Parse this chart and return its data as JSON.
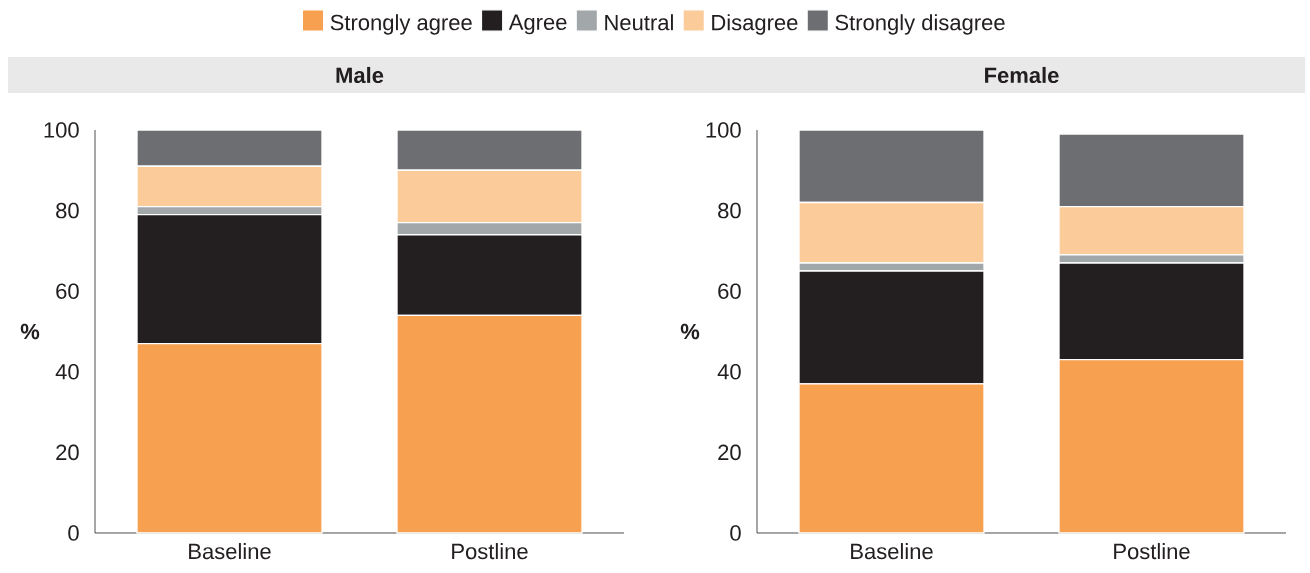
{
  "chart_data": [
    {
      "type": "bar",
      "title": "Male",
      "ylabel": "%",
      "categories": [
        "Baseline",
        "Postline"
      ],
      "stacked": true,
      "ylim": [
        0,
        100
      ],
      "yticks": [
        0,
        20,
        40,
        60,
        80,
        100
      ],
      "legend": "top",
      "series": [
        {
          "name": "Strongly agree",
          "color": "#f7a04f",
          "values": [
            47,
            54
          ]
        },
        {
          "name": "Agree",
          "color": "#231f20",
          "values": [
            32,
            20
          ]
        },
        {
          "name": "Neutral",
          "color": "#a2a8aa",
          "values": [
            2,
            3
          ]
        },
        {
          "name": "Disagree",
          "color": "#fbcb9a",
          "values": [
            10,
            13
          ]
        },
        {
          "name": "Strongly disagree",
          "color": "#6d6e71",
          "values": [
            9,
            10
          ]
        }
      ]
    },
    {
      "type": "bar",
      "title": "Female",
      "ylabel": "%",
      "categories": [
        "Baseline",
        "Postline"
      ],
      "stacked": true,
      "ylim": [
        0,
        100
      ],
      "yticks": [
        0,
        20,
        40,
        60,
        80,
        100
      ],
      "series": [
        {
          "color": "#f7a04f",
          "values": [
            37,
            43
          ]
        },
        {
          "color": "#231f20",
          "values": [
            28,
            24
          ]
        },
        {
          "color": "#a2a8aa",
          "values": [
            2,
            2
          ]
        },
        {
          "color": "#fbcb9a",
          "values": [
            15,
            12
          ]
        },
        {
          "color": "#6d6e71",
          "values": [
            18,
            18
          ]
        }
      ]
    }
  ]
}
